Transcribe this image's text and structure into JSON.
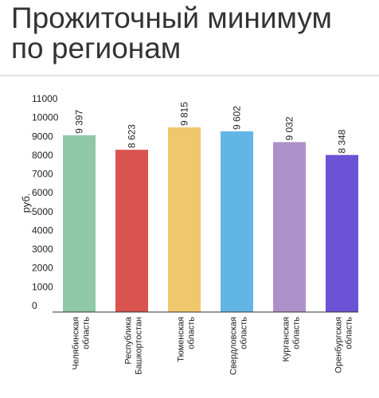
{
  "title": "Прожиточный минимум по регионам",
  "chart_data": {
    "type": "bar",
    "ylabel": "руб.",
    "ylim": [
      0,
      11000
    ],
    "yticks": [
      0,
      1000,
      2000,
      3000,
      4000,
      5000,
      6000,
      7000,
      8000,
      9000,
      10000,
      11000
    ],
    "grid": false,
    "categories": [
      [
        "Челябинская",
        "область"
      ],
      [
        "Республика",
        "Башкортостан"
      ],
      [
        "Тюменская",
        "область"
      ],
      [
        "Свердловская",
        "область"
      ],
      [
        "Курганская",
        "область"
      ],
      [
        "Оренбургская",
        "область"
      ]
    ],
    "values": [
      9397,
      8623,
      9815,
      9602,
      9032,
      8348
    ],
    "data_labels": [
      "9 397",
      "8 623",
      "9 815",
      "9 602",
      "9 032",
      "8 348"
    ],
    "colors": [
      "#8fc8a4",
      "#d9534f",
      "#f0c76a",
      "#62b6e6",
      "#ad90c9",
      "#6c52d4"
    ]
  }
}
